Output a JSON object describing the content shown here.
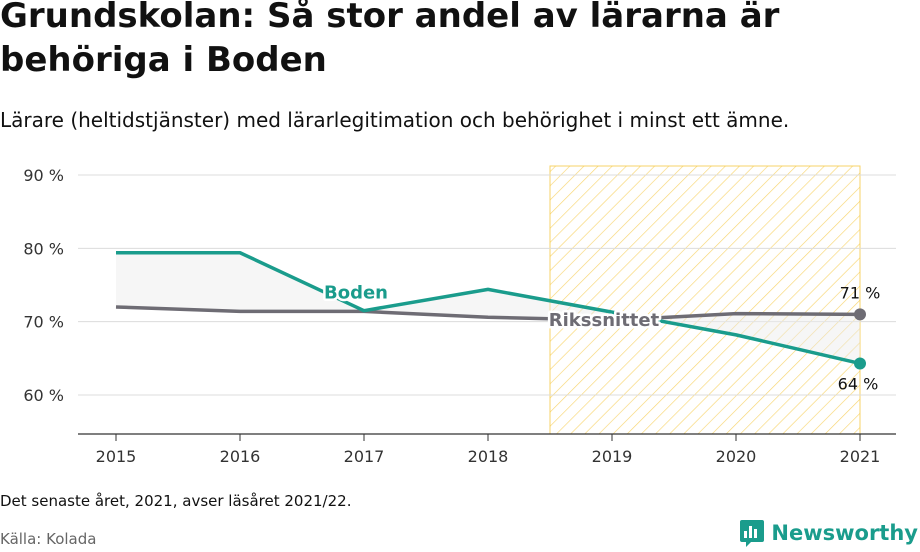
{
  "title": "Grundskolan: Så stor andel av lärarna är behöriga i Boden",
  "subtitle": "Lärare (heltidstjänster) med lärarlegitimation och behörighet i minst ett ämne.",
  "note": "Det senaste året, 2021, avser läsåret 2021/22.",
  "source": "Källa: Kolada",
  "brand": "Newsworthy",
  "colors": {
    "boden": "#1a9c8c",
    "riket": "#6e6c74",
    "highlight": "#f5c842",
    "brand": "#1a9c8c"
  },
  "chart_data": {
    "type": "line",
    "x": [
      "2015",
      "2016",
      "2017",
      "2018",
      "2019",
      "2020",
      "2021"
    ],
    "ylim": [
      55,
      90
    ],
    "yticks": [
      60,
      70,
      80,
      90
    ],
    "ytick_labels": [
      "60 %",
      "70 %",
      "80 %",
      "90 %"
    ],
    "grid": true,
    "highlight_range": [
      "2019",
      "2021"
    ],
    "series": [
      {
        "name": "Boden",
        "color": "#1a9c8c",
        "values": [
          79.4,
          79.4,
          71.5,
          74.4,
          71.3,
          68.2,
          64.3
        ]
      },
      {
        "name": "Rikssnittet",
        "color": "#6e6c74",
        "values": [
          72.0,
          71.4,
          71.4,
          70.6,
          70.2,
          71.1,
          71.0
        ]
      }
    ],
    "end_labels": {
      "Boden": "64 %",
      "Rikssnittet": "71 %"
    }
  }
}
